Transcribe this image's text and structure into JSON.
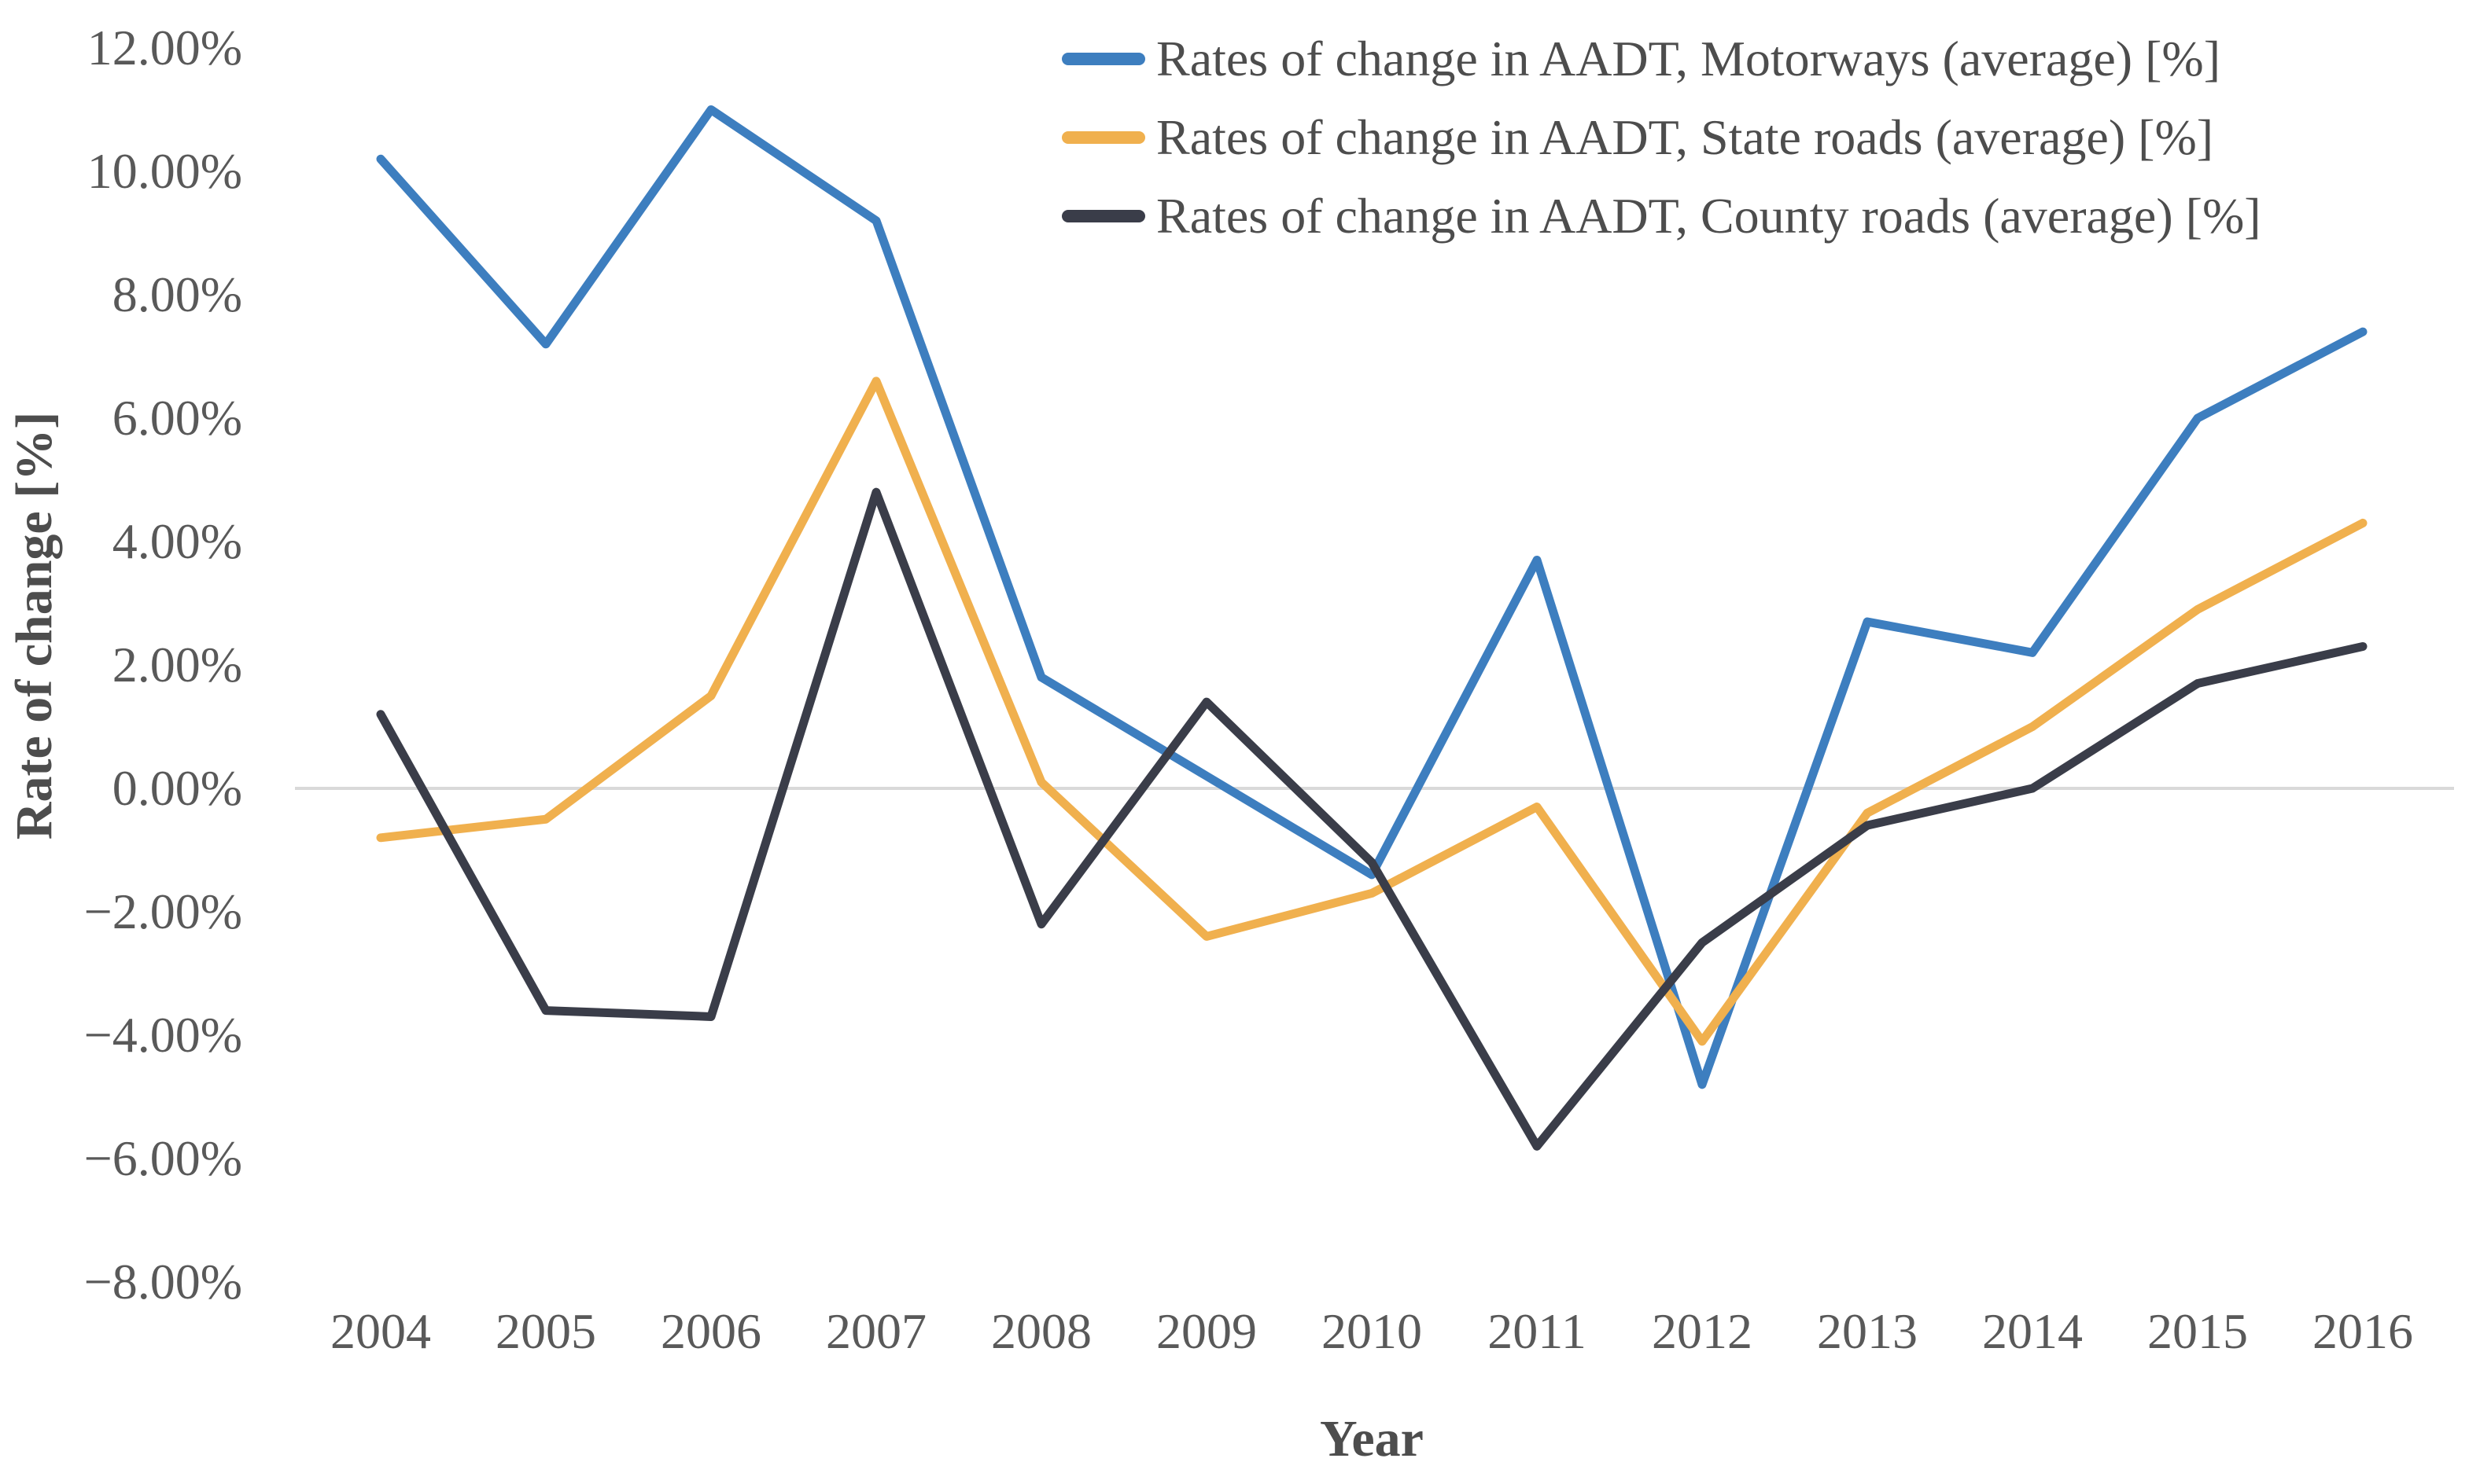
{
  "chart_data": {
    "type": "line",
    "title": "",
    "xlabel": "Year",
    "ylabel": "Rate of change [%]",
    "categories": [
      "2004",
      "2005",
      "2006",
      "2007",
      "2008",
      "2009",
      "2010",
      "2011",
      "2012",
      "2013",
      "2014",
      "2015",
      "2016"
    ],
    "series": [
      {
        "name": "Rates of change in AADT, Motorways (average) [%]",
        "color": "#3D7EBF",
        "values": [
          10.2,
          7.2,
          11.0,
          9.2,
          1.8,
          0.2,
          -1.4,
          3.7,
          -4.8,
          2.7,
          2.2,
          6.0,
          7.4
        ]
      },
      {
        "name": "Rates of change in AADT, State roads (average) [%]",
        "color": "#F0B04E",
        "values": [
          -0.8,
          -0.5,
          1.5,
          6.6,
          0.1,
          -2.4,
          -1.7,
          -0.3,
          -4.1,
          -0.4,
          1.0,
          2.9,
          4.3
        ]
      },
      {
        "name": "Rates of change in AADT, County roads (average) [%]",
        "color": "#3A3D49",
        "values": [
          1.2,
          -3.6,
          -3.7,
          4.8,
          -2.2,
          1.4,
          -1.2,
          -5.8,
          -2.5,
          -0.6,
          0.0,
          1.7,
          2.3
        ]
      }
    ],
    "y_ticks": [
      {
        "value": 12,
        "label": "12.00%"
      },
      {
        "value": 10,
        "label": "10.00%"
      },
      {
        "value": 8,
        "label": "8.00%"
      },
      {
        "value": 6,
        "label": "6.00%"
      },
      {
        "value": 4,
        "label": "4.00%"
      },
      {
        "value": 2,
        "label": "2.00%"
      },
      {
        "value": 0,
        "label": "0.00%"
      },
      {
        "value": -2,
        "label": "−2.00%"
      },
      {
        "value": -4,
        "label": "−4.00%"
      },
      {
        "value": -6,
        "label": "−6.00%"
      },
      {
        "value": -8,
        "label": "−8.00%"
      }
    ],
    "ylim": [
      -8,
      12
    ],
    "grid": "zero-line-only",
    "zero_line_color": "#D9D9D9",
    "legend_position": "top-right"
  }
}
